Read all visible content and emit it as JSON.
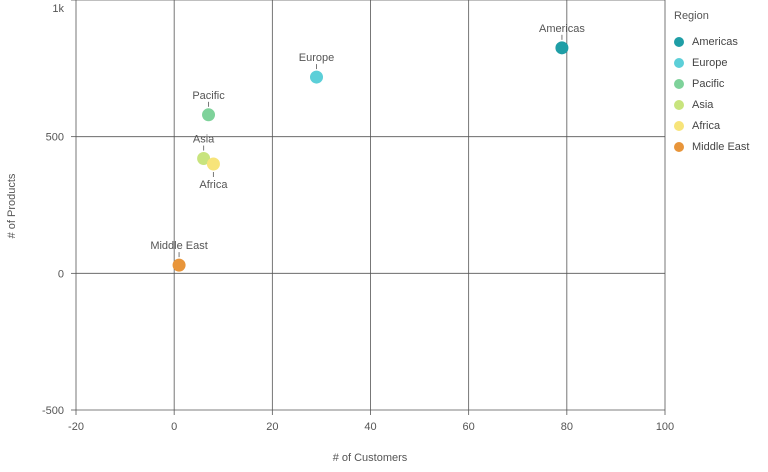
{
  "chart_data": {
    "type": "scatter",
    "xlabel": "# of Customers",
    "ylabel": "# of Products",
    "xlim": [
      -20,
      100
    ],
    "ylim": [
      -500,
      1000
    ],
    "x_ticks": [
      "-20",
      "0",
      "20",
      "40",
      "60",
      "80",
      "100"
    ],
    "x_tick_values": [
      -20,
      0,
      20,
      40,
      60,
      80,
      100
    ],
    "y_ticks": [
      "-500",
      "0",
      "500",
      "1k"
    ],
    "y_tick_values": [
      -500,
      0,
      500,
      1000
    ],
    "grid": true,
    "legend_title": "Region",
    "legend_position": "right",
    "series": [
      {
        "name": "Americas",
        "color": "#1f9ea6",
        "x": 79,
        "y": 825
      },
      {
        "name": "Europe",
        "color": "#5ccfd8",
        "x": 29,
        "y": 718
      },
      {
        "name": "Pacific",
        "color": "#7ed29a",
        "x": 7,
        "y": 580
      },
      {
        "name": "Asia",
        "color": "#c8e47e",
        "x": 6,
        "y": 420
      },
      {
        "name": "Africa",
        "color": "#f7e47a",
        "x": 8,
        "y": 400
      },
      {
        "name": "Middle East",
        "color": "#e8953a",
        "x": 1,
        "y": 30
      }
    ]
  }
}
